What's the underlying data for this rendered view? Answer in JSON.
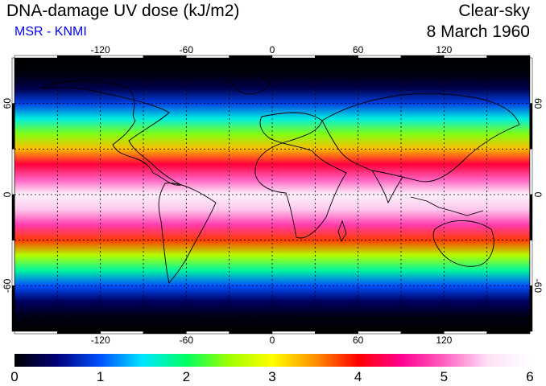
{
  "header": {
    "title": "DNA-damage UV dose (kJ/m2)",
    "subtitle": "MSR - KNMI",
    "condition": "Clear-sky",
    "date": "8 March 1960"
  },
  "map": {
    "longitude_ticks": [
      "-120",
      "-60",
      "0",
      "60",
      "120"
    ],
    "longitude_values": [
      -120,
      -60,
      0,
      60,
      120
    ],
    "latitude_ticks": [
      "60",
      "0",
      "-60"
    ],
    "latitude_values": [
      60,
      0,
      -60
    ],
    "grid": "dotted 30-degree graticule",
    "coastline_color": "#000000",
    "dose_by_latitude": {
      "lat": [
        80,
        70,
        60,
        50,
        40,
        30,
        20,
        10,
        0,
        -10,
        -20,
        -30,
        -40,
        -50,
        -60,
        -70,
        -80
      ],
      "value": [
        0.05,
        0.3,
        0.9,
        1.6,
        2.4,
        3.3,
        4.2,
        5.0,
        5.8,
        5.4,
        4.8,
        3.8,
        2.6,
        1.8,
        1.0,
        0.4,
        0.1
      ]
    }
  },
  "colorbar": {
    "labels": [
      "0",
      "1",
      "2",
      "3",
      "4",
      "5",
      "6"
    ],
    "min": 0,
    "max": 6,
    "stops": [
      "#000000",
      "#00007a",
      "#0050ff",
      "#00e8ff",
      "#00ff60",
      "#a0ff00",
      "#ffff00",
      "#ff9000",
      "#ff0000",
      "#ff0090",
      "#ff60c0",
      "#ffe0f8",
      "#ffffff"
    ]
  }
}
